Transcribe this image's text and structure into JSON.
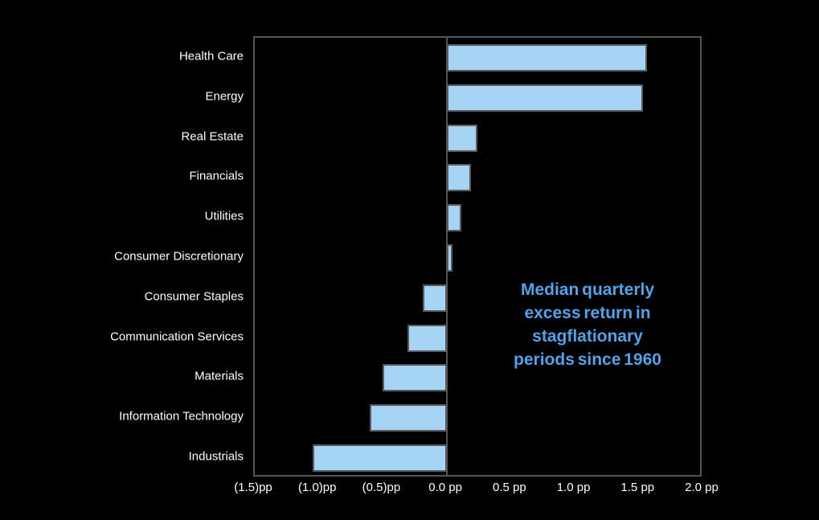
{
  "chart_data": {
    "type": "bar",
    "orientation": "horizontal",
    "categories": [
      "Health Care",
      "Energy",
      "Real Estate",
      "Financials",
      "Utilities",
      "Consumer Discretionary",
      "Consumer Staples",
      "Communication Services",
      "Materials",
      "Information Technology",
      "Industrials"
    ],
    "values": [
      1.56,
      1.53,
      0.24,
      0.19,
      0.11,
      0.04,
      -0.19,
      -0.31,
      -0.5,
      -0.6,
      -1.05
    ],
    "unit": "pp",
    "xlim": [
      -1.5,
      2.0
    ],
    "xticks": [
      -1.5,
      -1.0,
      -0.5,
      0.0,
      0.5,
      1.0,
      1.5,
      2.0
    ],
    "xtick_labels": [
      "(1.5)pp",
      "(1.0)pp",
      "(0.5)pp",
      "0.0 pp",
      "0.5 pp",
      "1.0 pp",
      "1.5 pp",
      "2.0 pp"
    ],
    "grid": false,
    "legend": "none",
    "annotation": "Median quarterly excess return in stagflationary periods since 1960"
  },
  "annotation": {
    "lines": [
      "Median quarterly",
      "excess return in",
      "stagflationary",
      "periods since 1960"
    ]
  },
  "colors": {
    "background": "#000000",
    "bar_fill": "#a6d4f7",
    "bar_border": "#5a5a5a",
    "plot_border": "#545454",
    "zero_line": "#545454",
    "category_text": "#ffffff",
    "tick_text": "#ffffff",
    "annotation_text": "#56a2e8"
  }
}
